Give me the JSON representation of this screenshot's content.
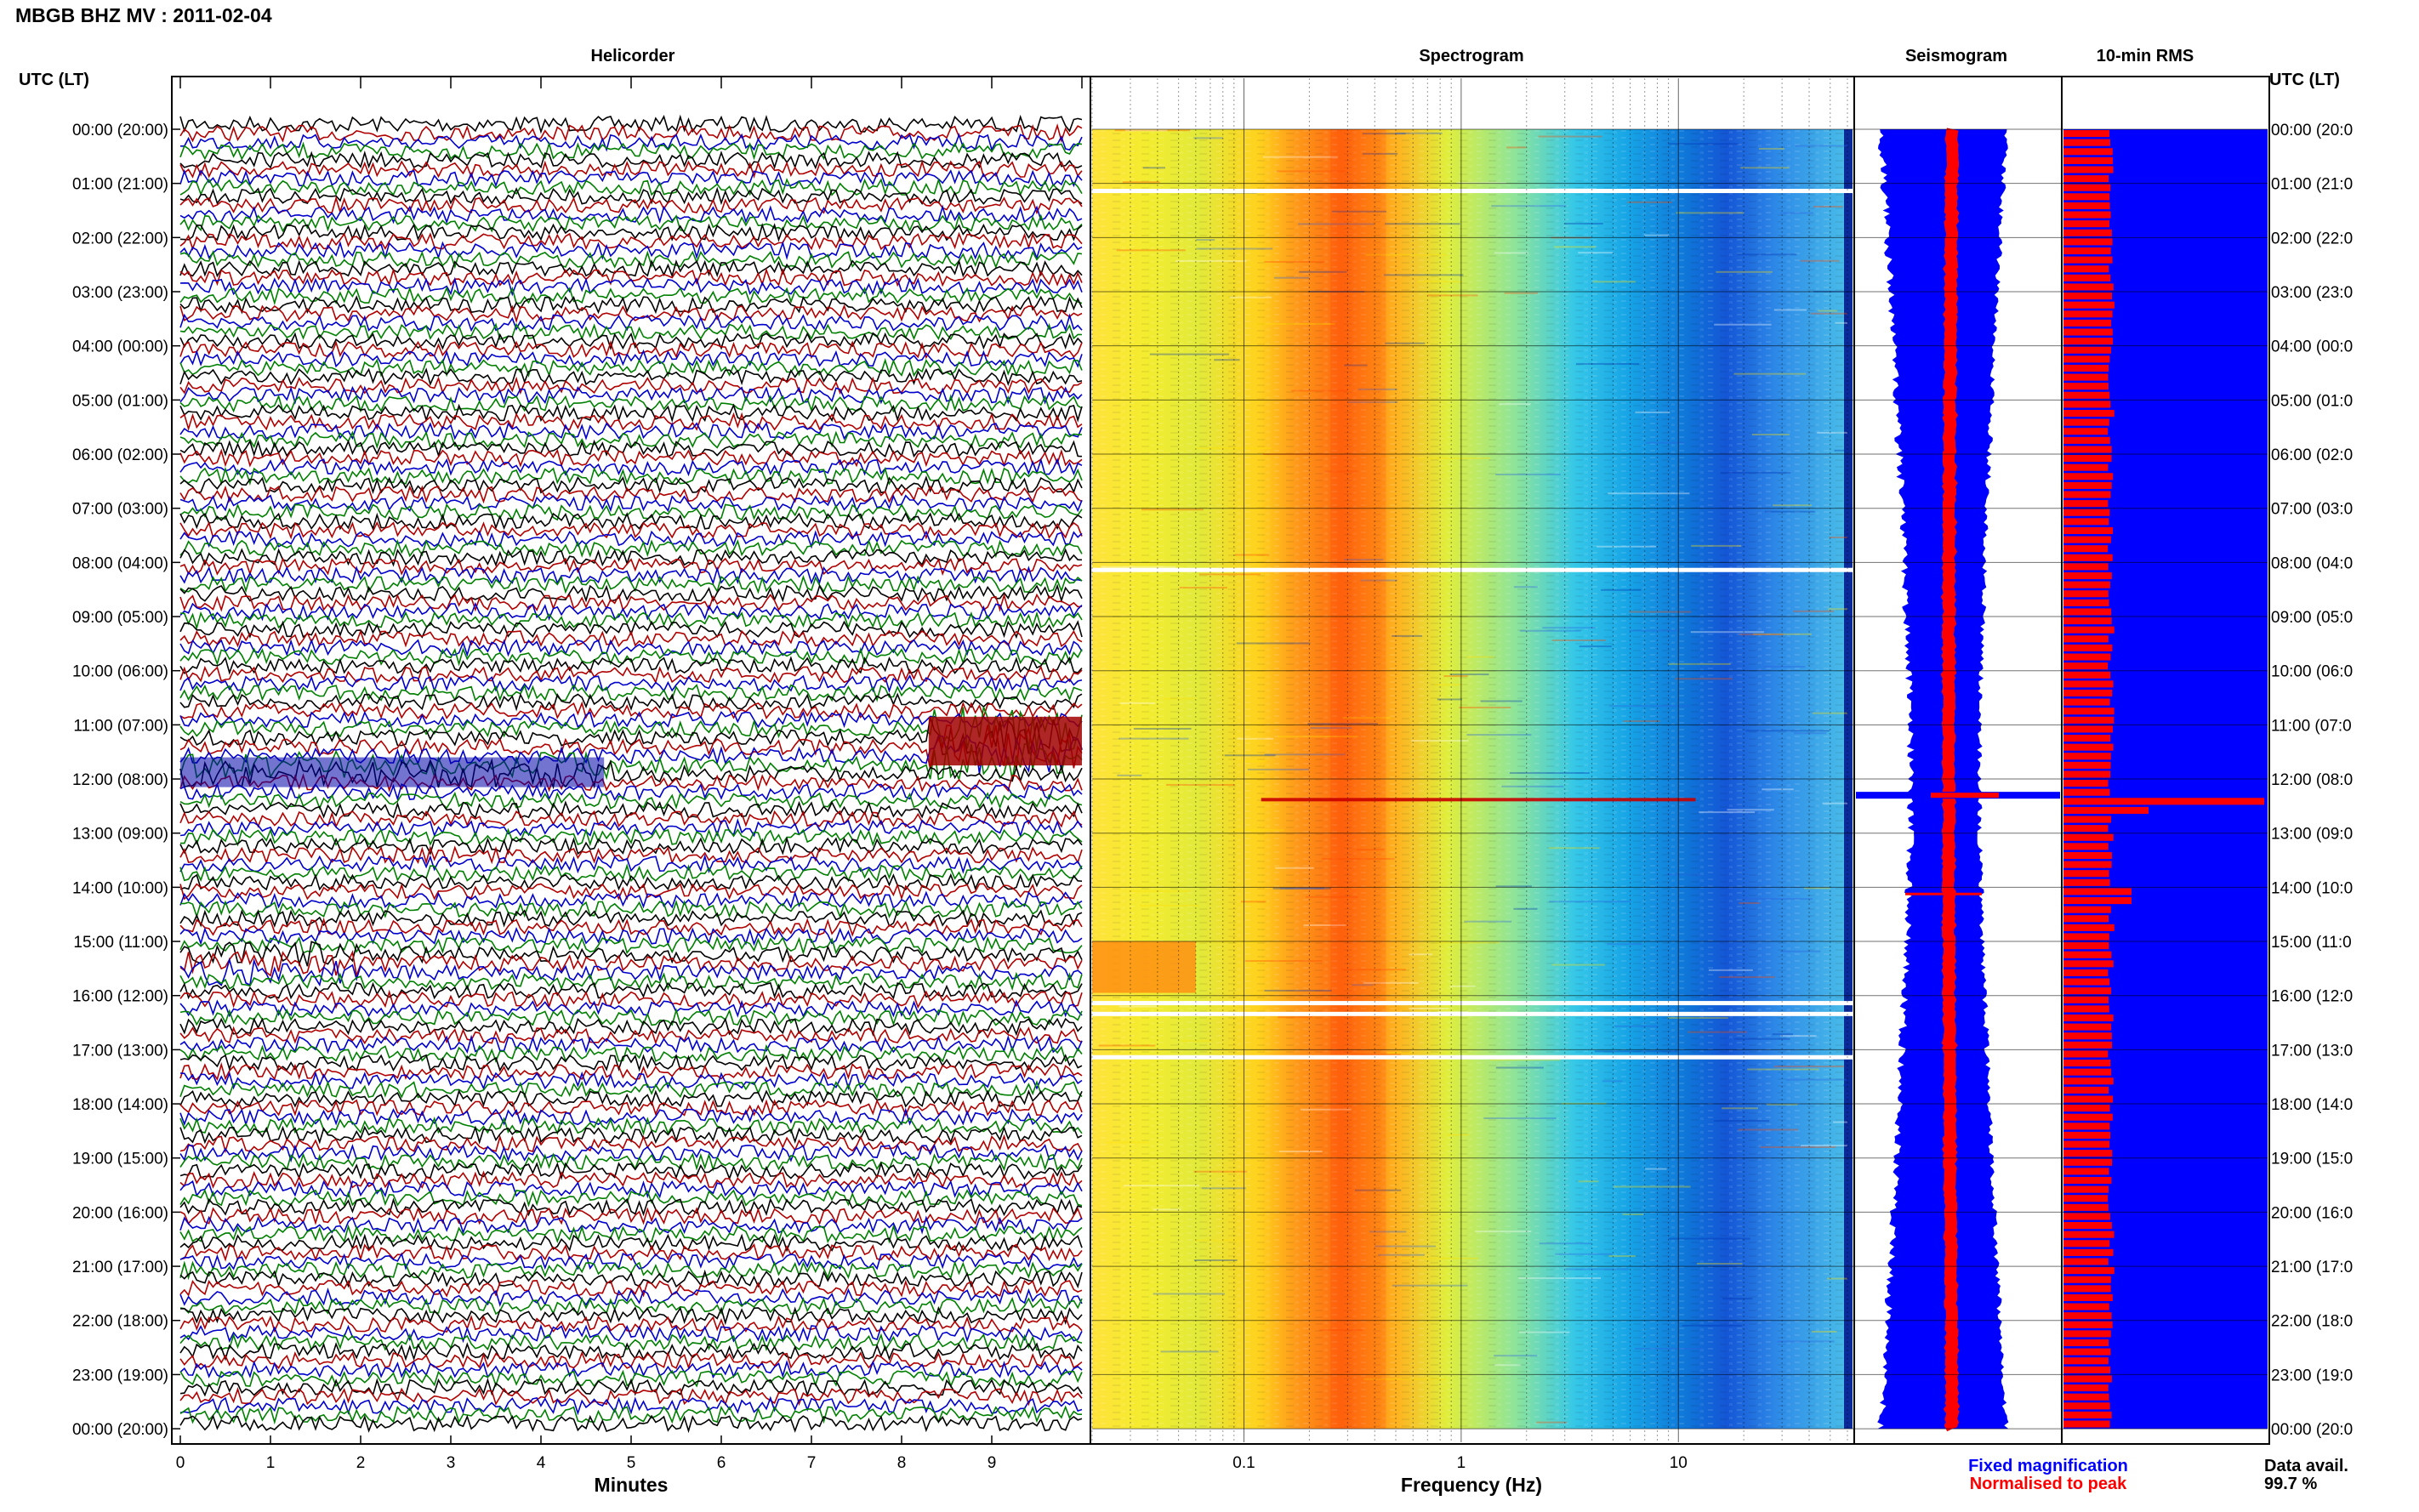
{
  "page": {
    "title": "MBGB BHZ MV : 2011-02-04",
    "time_header_left": "UTC (LT)",
    "time_header_right": "UTC (LT)",
    "data_avail_label": "Data avail.",
    "data_avail_value": "99.7 %",
    "legend_fixed": "Fixed magnification",
    "legend_normalised": "Normalised to peak"
  },
  "colors": {
    "trace_series": [
      "#000000",
      "#b00000",
      "#0000cc",
      "#008000"
    ],
    "blue": "#0000ff",
    "red": "#ff0000",
    "rms_blue": "#0000ff",
    "rms_red": "#ff0000"
  },
  "rows": [
    "00:00 (20:00)",
    "01:00 (21:00)",
    "02:00 (22:00)",
    "03:00 (23:00)",
    "04:00 (00:00)",
    "05:00 (01:00)",
    "06:00 (02:00)",
    "07:00 (03:00)",
    "08:00 (04:00)",
    "09:00 (05:00)",
    "10:00 (06:00)",
    "11:00 (07:00)",
    "12:00 (08:00)",
    "13:00 (09:00)",
    "14:00 (10:00)",
    "15:00 (11:00)",
    "16:00 (12:00)",
    "17:00 (13:00)",
    "18:00 (14:00)",
    "19:00 (15:00)",
    "20:00 (16:00)",
    "21:00 (17:00)",
    "22:00 (18:00)",
    "23:00 (19:00)",
    "00:00 (20:00)"
  ],
  "rows_right": [
    "00:00 (20:0",
    "01:00 (21:0",
    "02:00 (22:0",
    "03:00 (23:0",
    "04:00 (00:0",
    "05:00 (01:0",
    "06:00 (02:0",
    "07:00 (03:0",
    "08:00 (04:0",
    "09:00 (05:0",
    "10:00 (06:0",
    "11:00 (07:0",
    "12:00 (08:0",
    "13:00 (09:0",
    "14:00 (10:0",
    "15:00 (11:0",
    "16:00 (12:0",
    "17:00 (13:0",
    "18:00 (14:0",
    "19:00 (15:0",
    "20:00 (16:0",
    "21:00 (17:0",
    "22:00 (18:0",
    "23:00 (19:0",
    "00:00 (20:0"
  ],
  "chart_data": [
    {
      "type": "line",
      "title": "Helicorder",
      "xlabel": "Minutes",
      "x_ticks": [
        "0",
        "1",
        "2",
        "3",
        "4",
        "5",
        "6",
        "7",
        "8",
        "9"
      ],
      "xlim": [
        0,
        10
      ],
      "traces_per_hour": 6,
      "event_hour": 11.5,
      "event_start_minute": 8.3
    },
    {
      "type": "heatmap",
      "title": "Spectrogram",
      "xlabel": "Frequency (Hz)",
      "x_scale": "log",
      "x_ticks": [
        "0.1",
        "1",
        "10"
      ],
      "xlim": [
        0.02,
        60
      ],
      "peak_band_hz": [
        0.25,
        0.45
      ],
      "gap_hours": [
        1.1,
        8.1,
        16.1,
        16.3,
        17.1
      ]
    },
    {
      "type": "area",
      "title": "Seismogram",
      "series": [
        {
          "name": "Fixed magnification",
          "color": "#0000ff"
        },
        {
          "name": "Normalised to peak",
          "color": "#ff0000"
        }
      ],
      "event_hour": 12.3
    },
    {
      "type": "bar",
      "title": "10-min RMS",
      "orientation": "horizontal",
      "bins_per_hour": 6,
      "series": [
        {
          "name": "rms_blue",
          "color": "#0000ff"
        },
        {
          "name": "rms_red",
          "color": "#ff0000"
        }
      ],
      "peak_hour": 12.3
    }
  ]
}
